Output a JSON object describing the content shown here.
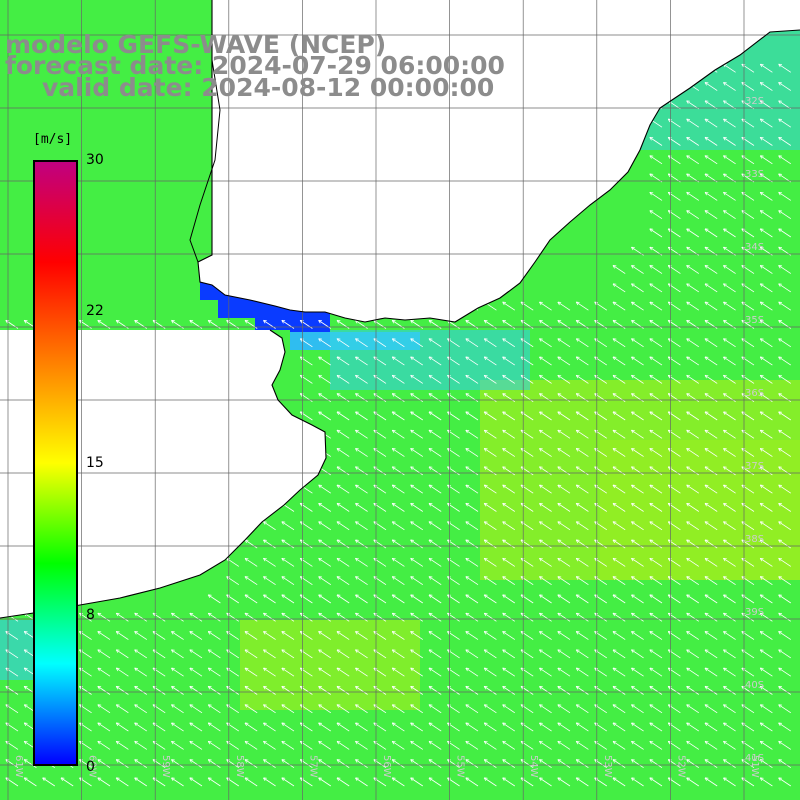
{
  "header": {
    "line1": "modelo GEFS-WAVE (NCEP)",
    "line2": "forecast date: 2024-07-29 06:00:00",
    "line3": "valid date: 2024-08-12 00:00:00"
  },
  "colorbar": {
    "unit": "[m/s]",
    "min": 0,
    "max": 30,
    "ticks": [
      "30",
      "22",
      "15",
      "8",
      "0"
    ],
    "tick_values": [
      30,
      22,
      15,
      8,
      0
    ],
    "colors": [
      "#0000ff",
      "#00ffff",
      "#00ff00",
      "#ffff00",
      "#ff8000",
      "#ff0000",
      "#c00080"
    ]
  },
  "map": {
    "variable": "wind speed",
    "field_colors": {
      "sea_low": "#33ccee",
      "sea_mid": "#44ee44",
      "sea_high": "#99ee22",
      "channel": "#0a3bff",
      "land": "#ffffff",
      "coast": "#000000",
      "arrow": "#ffffff",
      "grid": "#666666"
    },
    "lon_labels": [
      "61W",
      "60W",
      "59W",
      "58W",
      "57W",
      "56W",
      "55W",
      "54W",
      "53W",
      "52W",
      "51W"
    ],
    "lat_labels": [
      "32S",
      "33S",
      "34S",
      "35S",
      "36S",
      "37S",
      "38S",
      "39S",
      "40S",
      "41S"
    ]
  }
}
